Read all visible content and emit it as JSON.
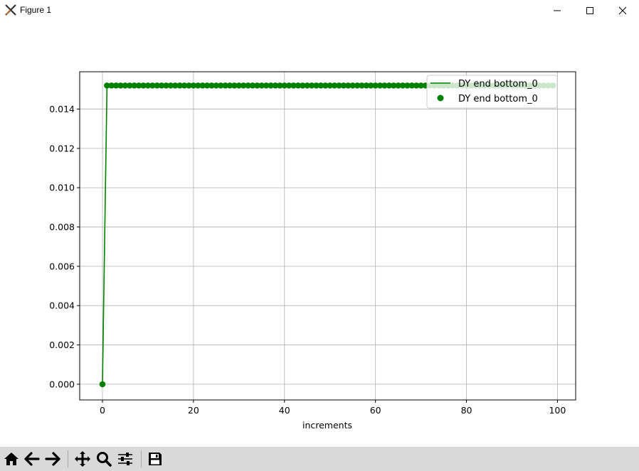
{
  "window": {
    "title": "Figure 1",
    "minimize_icon": "minimize-icon",
    "maximize_icon": "maximize-icon",
    "close_icon": "close-icon"
  },
  "toolbar": {
    "buttons": [
      {
        "name": "home",
        "icon": "home-icon"
      },
      {
        "name": "back",
        "icon": "arrow-left-icon"
      },
      {
        "name": "forward",
        "icon": "arrow-right-icon"
      },
      {
        "name": "pan",
        "icon": "move-icon"
      },
      {
        "name": "zoom",
        "icon": "magnifier-icon"
      },
      {
        "name": "configure-subplots",
        "icon": "sliders-icon"
      },
      {
        "name": "save",
        "icon": "floppy-disk-icon"
      }
    ]
  },
  "chart_data": {
    "type": "line",
    "title": "",
    "xlabel": "increments",
    "ylabel": "",
    "xlim": [
      -5,
      104
    ],
    "ylim": [
      -0.0008,
      0.0159
    ],
    "xticks": [
      "0",
      "20",
      "40",
      "60",
      "80",
      "100"
    ],
    "yticks": [
      "0.000",
      "0.002",
      "0.004",
      "0.006",
      "0.008",
      "0.010",
      "0.012",
      "0.014"
    ],
    "grid": true,
    "legend_position": "top-right",
    "color": "#008000",
    "series": [
      {
        "name": "DY end bottom_0",
        "style": "line",
        "x_start": 0,
        "x_end": 99,
        "first_value": 0.0,
        "value": 0.0152
      },
      {
        "name": "DY end bottom_0",
        "style": "markers",
        "x_start": 0,
        "x_end": 99,
        "first_value": 0.0,
        "value": 0.0152
      }
    ]
  }
}
